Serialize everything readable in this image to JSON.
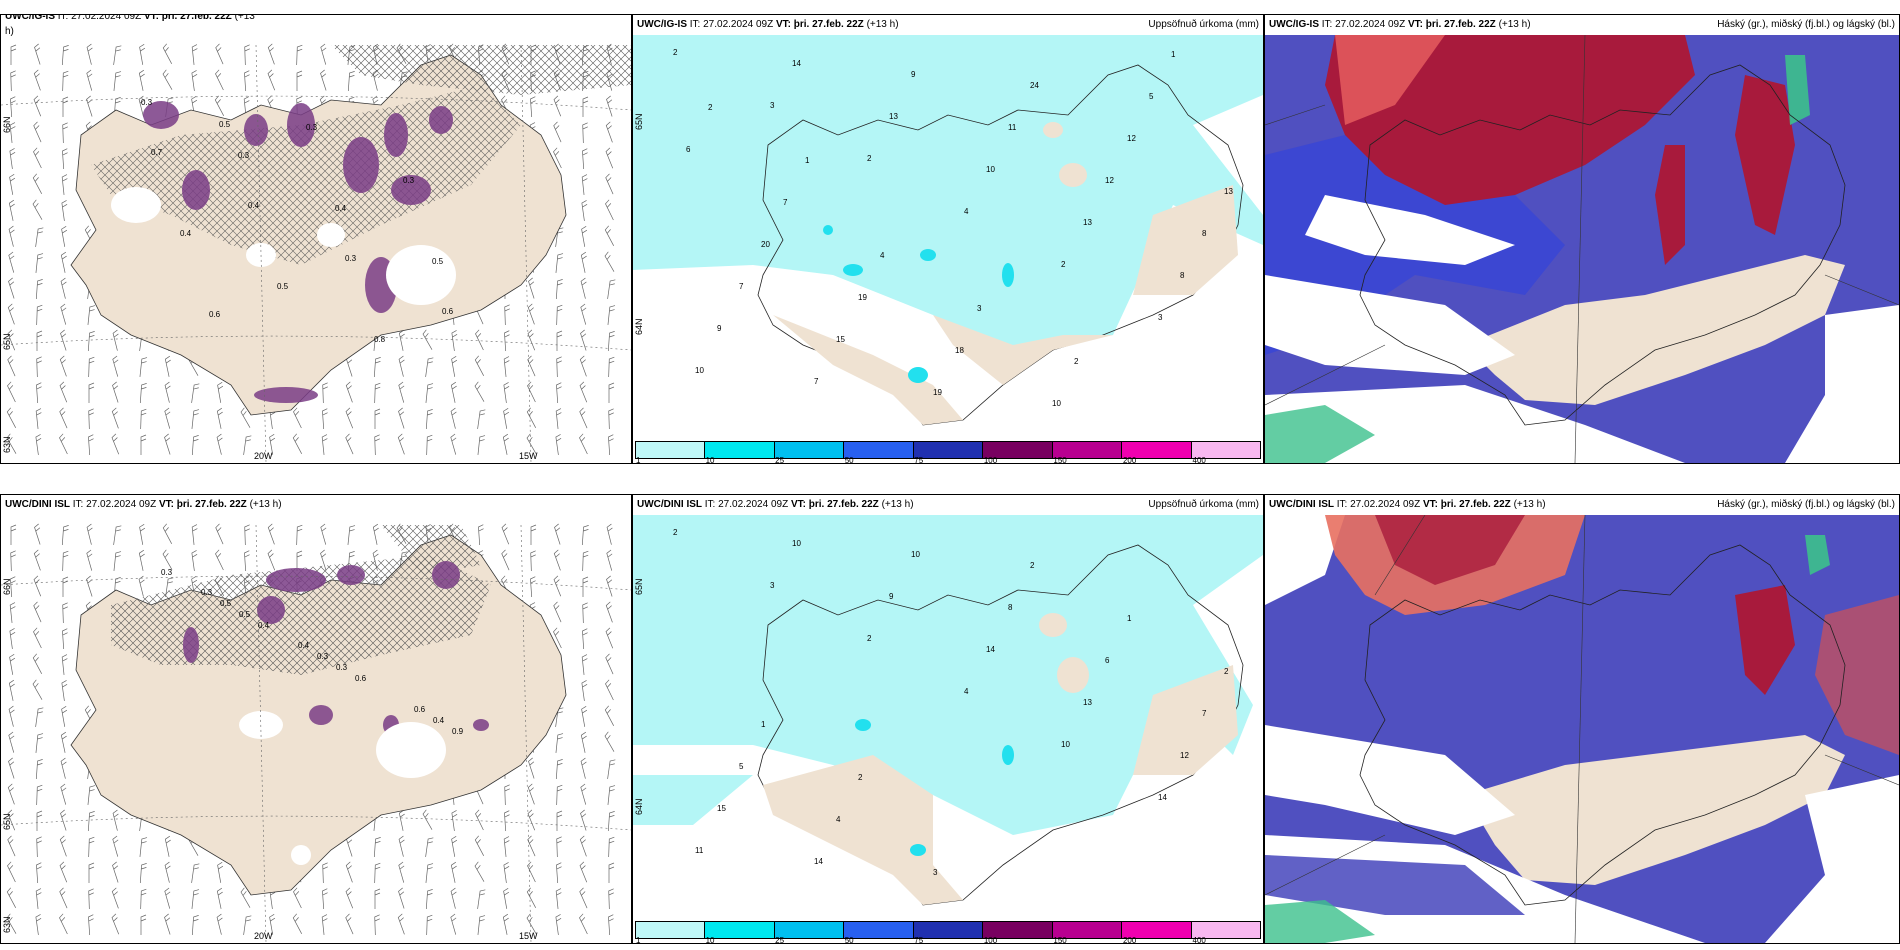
{
  "panels": {
    "top_left": {
      "header_model": "UWC/IG-IS",
      "header_it": "IT: 27.02.2024 09Z",
      "header_vt": "VT: þri. 27.feb. 22Z",
      "header_step": "(+13",
      "header_step_wrap": "h)",
      "lat_labels": [
        "66N",
        "65N",
        "63N"
      ],
      "lon_labels": [
        "20W",
        "15W"
      ],
      "values": [
        "0.3",
        "0.3",
        "0.4",
        "0.5",
        "0.6",
        "0.3",
        "0.3",
        "0.4",
        "0.5",
        "0.8",
        "0.7",
        "0.4",
        "0.3",
        "0.6",
        "0.5"
      ]
    },
    "top_mid": {
      "header_model": "UWC/IG-IS",
      "header_it": "IT: 27.02.2024 09Z",
      "header_vt": "VT: þri. 27.feb. 22Z",
      "header_step": "(+13 h)",
      "title_right": "Uppsöfnuð úrkoma (mm)",
      "lat_labels": [
        "65N",
        "64N"
      ],
      "values": [
        "2",
        "3",
        "2",
        "4",
        "2",
        "3",
        "10",
        "14",
        "13",
        "10",
        "13",
        "8",
        "9",
        "7",
        "9",
        "11",
        "12",
        "8",
        "7",
        "15",
        "19",
        "24",
        "12",
        "13",
        "20",
        "19",
        "18",
        "10",
        "5",
        "6",
        "7",
        "4",
        "3",
        "2",
        "1",
        "2",
        "1"
      ]
    },
    "top_right": {
      "header_model": "UWC/IG-IS",
      "header_it": "IT: 27.02.2024 09Z",
      "header_vt": "VT: þri. 27.feb. 22Z",
      "header_step": "(+13 h)",
      "title_right": "Háský (gr.), miðský (fj.bl.) og lágský (bl.)"
    },
    "bottom_left": {
      "header_model": "UWC/DINI ISL",
      "header_it": "IT: 27.02.2024 09Z",
      "header_vt": "VT: þri. 27.feb. 22Z",
      "header_step": "(+13 h)",
      "lat_labels": [
        "66N",
        "65N",
        "63N"
      ],
      "lon_labels": [
        "20W",
        "15W"
      ],
      "values": [
        "0.3",
        "0.4",
        "0.6",
        "0.9",
        "0.5",
        "0.3",
        "0.4",
        "0.5",
        "0.3",
        "0.6",
        "0.3",
        "0.4"
      ]
    },
    "bottom_mid": {
      "header_model": "UWC/DINI ISL",
      "header_it": "IT: 27.02.2024 09Z",
      "header_vt": "VT: þri. 27.feb. 22Z",
      "header_step": "(+13 h)",
      "title_right": "Uppsöfnuð úrkoma (mm)",
      "lat_labels": [
        "65N",
        "64N"
      ],
      "values": [
        "2",
        "3",
        "2",
        "4",
        "10",
        "14",
        "11",
        "10",
        "9",
        "14",
        "13",
        "12",
        "15",
        "14",
        "10",
        "8",
        "6",
        "7",
        "5",
        "4",
        "3",
        "2",
        "1",
        "2",
        "1",
        "2"
      ]
    },
    "bottom_right": {
      "header_model": "UWC/DINI ISL",
      "header_it": "IT: 27.02.2024 09Z",
      "header_vt": "VT: þri. 27.feb. 22Z",
      "header_step": "(+13 h)",
      "title_right": "Háský (gr.), miðský (fj.bl.) og lágský (bl.)"
    }
  },
  "precip_colorbar": {
    "ticks": [
      "1",
      "10",
      "25",
      "50",
      "75",
      "100",
      "150",
      "200",
      "400",
      ""
    ],
    "colors": [
      "#bff8f8",
      "#00e8f0",
      "#00c0f0",
      "#2860f0",
      "#2030b0",
      "#780060",
      "#b80090",
      "#f000b0",
      "#f8b8f0"
    ]
  },
  "colors": {
    "land": "#efe2d2",
    "sea": "#ffffff",
    "precip_light": "#b4f6f6",
    "precip_mid": "#22e0ee",
    "snow_purple": "#7a3d86",
    "high_cloud": "#a81a3c",
    "mid_cloud": "#5050c0",
    "low_cloud": "#2c40e0",
    "green_cloud": "#3cc08c"
  }
}
